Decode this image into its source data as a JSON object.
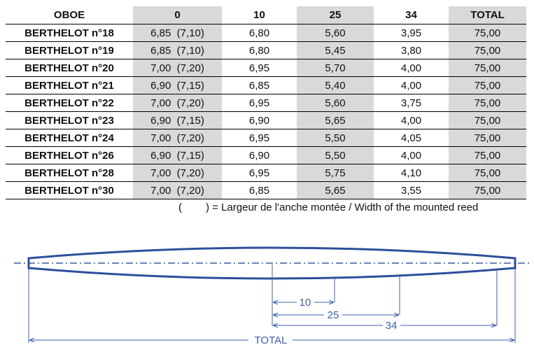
{
  "table": {
    "headers": [
      "OBOE",
      "0",
      "10",
      "25",
      "34",
      "TOTAL"
    ],
    "rows": [
      [
        "BERTHELOT n°18",
        "6,85  (7,10)",
        "6,80",
        "5,60",
        "3,95",
        "75,00"
      ],
      [
        "BERTHELOT n°19",
        "6,85  (7,10)",
        "6,80",
        "5,45",
        "3,80",
        "75,00"
      ],
      [
        "BERTHELOT n°20",
        "7,00  (7,20)",
        "6,95",
        "5,70",
        "4,00",
        "75,00"
      ],
      [
        "BERTHELOT n°21",
        "6,90  (7,15)",
        "6,85",
        "5,40",
        "4,00",
        "75,00"
      ],
      [
        "BERTHELOT n°22",
        "7,00  (7,20)",
        "6,95",
        "5,60",
        "3,75",
        "75,00"
      ],
      [
        "BERTHELOT n°23",
        "6,90  (7,15)",
        "6,90",
        "5,65",
        "4,00",
        "75,00"
      ],
      [
        "BERTHELOT n°24",
        "7,00  (7,20)",
        "6,95",
        "5,50",
        "4,05",
        "75,00"
      ],
      [
        "BERTHELOT n°26",
        "6,90  (7,15)",
        "6,90",
        "5,50",
        "4,00",
        "75,00"
      ],
      [
        "BERTHELOT n°28",
        "7,00  (7,20)",
        "6,95",
        "5,75",
        "4,10",
        "75,00"
      ],
      [
        "BERTHELOT n°30",
        "7,00  (7,20)",
        "6,85",
        "5,65",
        "3,55",
        "75,00"
      ]
    ],
    "shaded_columns": [
      1,
      3,
      5
    ],
    "shade_color": "#d9d9d9"
  },
  "legend": {
    "open_paren": "(",
    "text": ") = Largeur de l'anche montée / Width of the mounted reed"
  },
  "diagram": {
    "color": "#3b5fa8",
    "labels": {
      "d10": "10",
      "d25": "25",
      "d34": "34",
      "total": "TOTAL"
    }
  }
}
